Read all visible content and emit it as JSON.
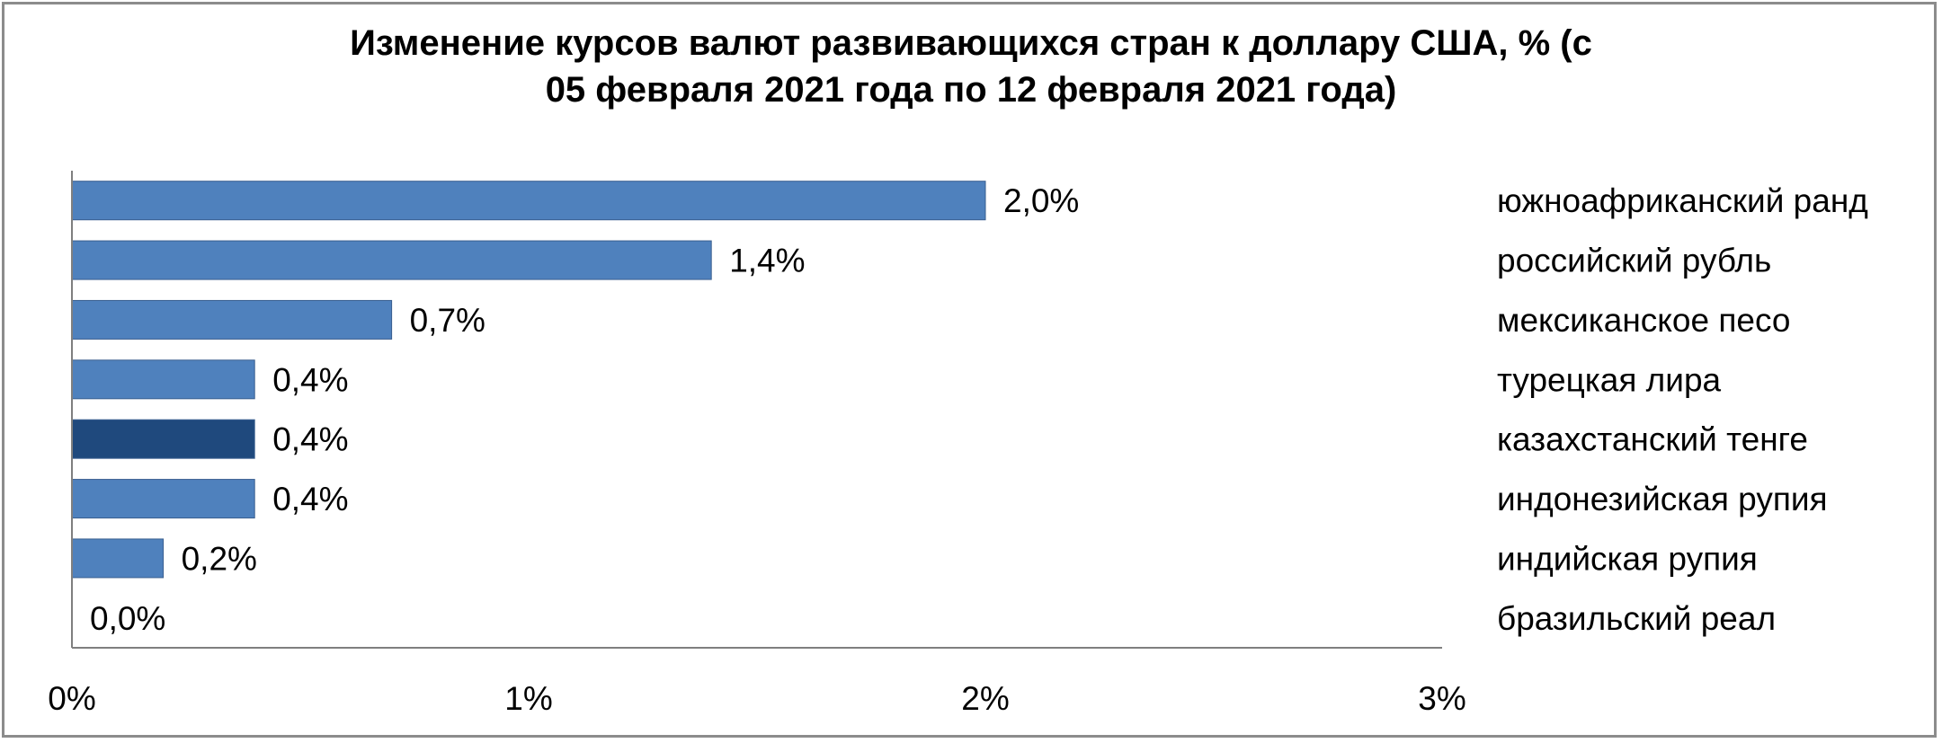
{
  "chart_data": {
    "type": "bar",
    "orientation": "horizontal",
    "title": "Изменение курсов валют развивающихся стран к доллару США, % (с 05 февраля 2021 года по 12 февраля 2021 года)",
    "categories": [
      "южноафриканский ранд",
      "российский рубль",
      "мексиканское песо",
      "турецкая лира",
      "казахстанский тенге",
      "индонезийская рупия",
      "индийская рупия",
      "бразильский реал"
    ],
    "values": [
      2.0,
      1.4,
      0.7,
      0.4,
      0.4,
      0.4,
      0.2,
      0.0
    ],
    "data_labels": [
      "2,0%",
      "1,4%",
      "0,7%",
      "0,4%",
      "0,4%",
      "0,4%",
      "0,2%",
      "0,0%"
    ],
    "highlight_category": "казахстанский тенге",
    "xlim": [
      0,
      3
    ],
    "xticks": [
      0,
      1,
      2,
      3
    ],
    "xtick_labels": [
      "0%",
      "1%",
      "2%",
      "3%"
    ],
    "grid": false,
    "legend": "none",
    "colors": {
      "bar": "#4f81bd",
      "highlight": "#1f497d",
      "axis": "#7f7f7f"
    }
  }
}
